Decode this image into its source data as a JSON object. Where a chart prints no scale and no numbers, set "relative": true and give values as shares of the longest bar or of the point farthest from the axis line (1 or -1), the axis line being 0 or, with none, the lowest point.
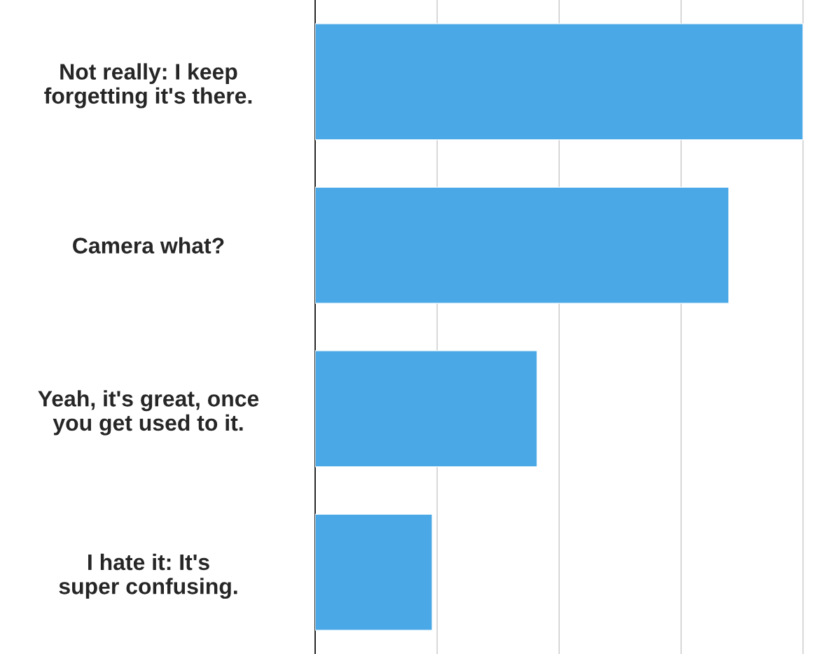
{
  "chart_data": {
    "type": "bar",
    "orientation": "horizontal",
    "relative": true,
    "grid": "x",
    "categories": [
      "Not really: I keep\nforgetting it's there.",
      "Camera what?",
      "Yeah, it's great, once\nyou get used to it.",
      "I hate it: It's\nsuper confusing."
    ],
    "values": [
      1,
      0.848,
      0.455,
      0.24
    ],
    "color": "#4aa8e6"
  }
}
